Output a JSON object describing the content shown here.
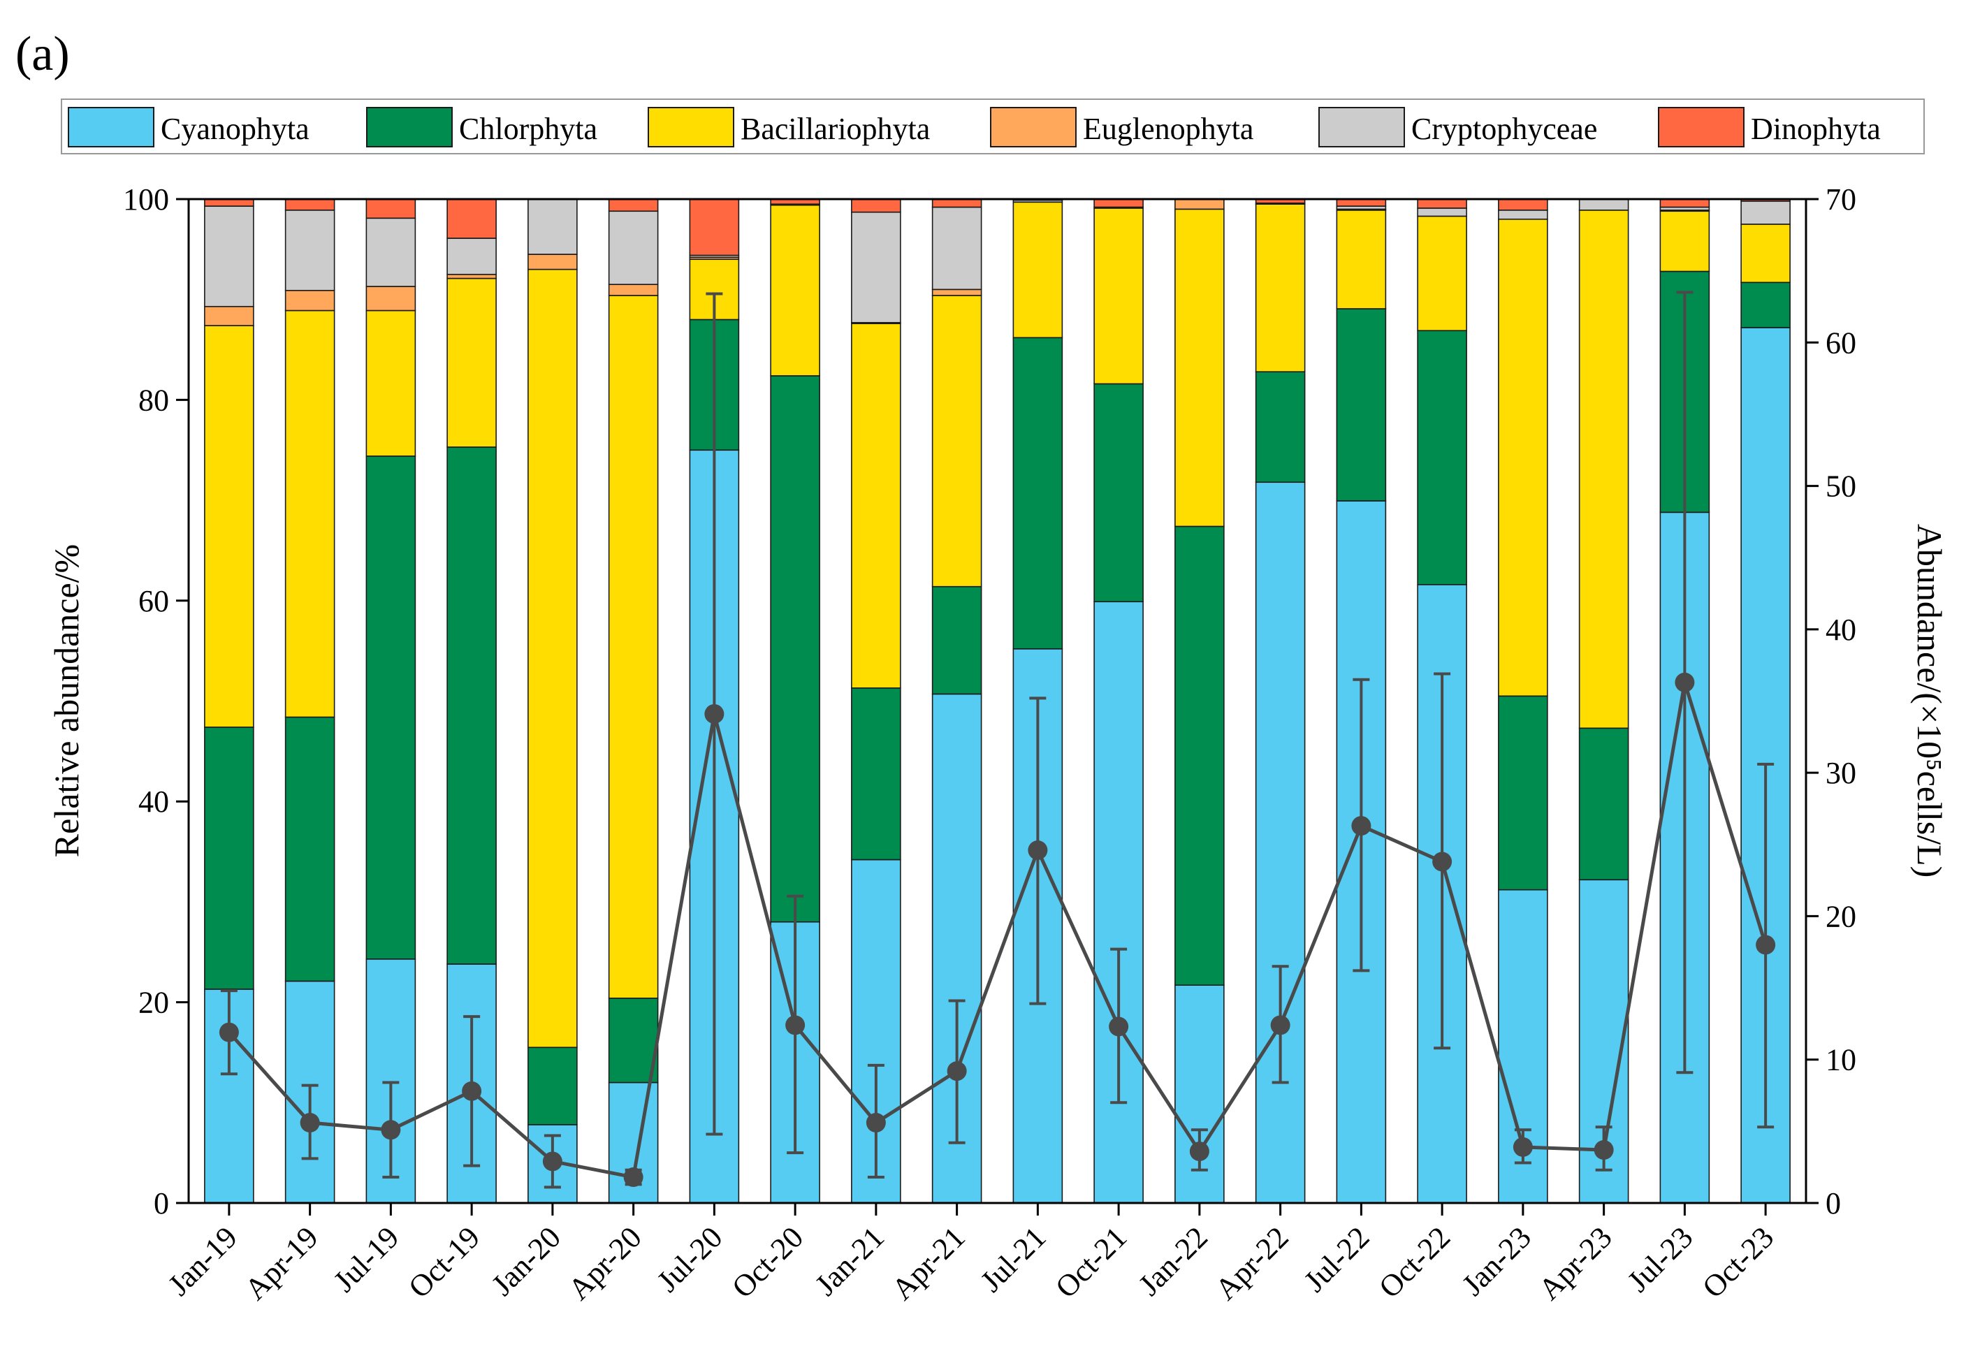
{
  "panel_label": "(a)",
  "chart_data": {
    "type": "bar",
    "stacked": true,
    "title": "",
    "ylabel": "Relative abundance/%",
    "ylabel2": "Abundance/(×10⁵cells/L)",
    "ylim": [
      0,
      100
    ],
    "ylim2": [
      0,
      70
    ],
    "yticks": [
      "0",
      "20",
      "40",
      "60",
      "80",
      "100"
    ],
    "yticks2": [
      "0",
      "10",
      "20",
      "30",
      "40",
      "50",
      "60",
      "70"
    ],
    "legend_position": "top",
    "categories": [
      "Jan-19",
      "Apr-19",
      "Jul-19",
      "Oct-19",
      "Jan-20",
      "Apr-20",
      "Jul-20",
      "Oct-20",
      "Jan-21",
      "Apr-21",
      "Jul-21",
      "Oct-21",
      "Jan-22",
      "Apr-22",
      "Jul-22",
      "Oct-22",
      "Jan-23",
      "Apr-23",
      "Jul-23",
      "Oct-23"
    ],
    "series": [
      {
        "name": "Cyanophyta",
        "color": "#56CCF2",
        "values": [
          21.3,
          22.1,
          24.3,
          23.8,
          7.8,
          12.0,
          75.0,
          28.0,
          34.2,
          50.7,
          55.2,
          59.9,
          21.7,
          71.8,
          69.8,
          61.6,
          31.2,
          32.2,
          68.8,
          87.2
        ]
      },
      {
        "name": "Chlorphyta",
        "color": "#008C4E",
        "values": [
          26.1,
          26.3,
          50.1,
          51.5,
          7.7,
          8.4,
          13.0,
          54.4,
          17.1,
          10.7,
          31.0,
          21.7,
          45.7,
          11.0,
          19.1,
          25.3,
          19.3,
          15.1,
          24.0,
          4.5
        ]
      },
      {
        "name": "Bacillariophyta",
        "color": "#FFDD00",
        "values": [
          40.0,
          40.5,
          14.5,
          16.8,
          77.5,
          70.0,
          6.0,
          17.0,
          36.3,
          29.0,
          13.5,
          17.5,
          31.6,
          16.7,
          9.8,
          11.4,
          47.5,
          51.6,
          6.0,
          5.8
        ]
      },
      {
        "name": "Euglenophyta",
        "color": "#FFA85C",
        "values": [
          1.9,
          2.0,
          2.4,
          0.4,
          1.5,
          1.1,
          0.2,
          0.1,
          0.1,
          0.6,
          0.0,
          0.0,
          1.0,
          0.0,
          0.1,
          0.0,
          0.0,
          0.0,
          0.1,
          0.0
        ]
      },
      {
        "name": "Cryptophyceae",
        "color": "#CCCCCC",
        "values": [
          10.0,
          8.0,
          6.8,
          3.6,
          5.5,
          7.3,
          0.2,
          0.0,
          11.0,
          8.2,
          0.2,
          0.1,
          0.0,
          0.1,
          0.3,
          0.8,
          0.9,
          1.1,
          0.3,
          2.3
        ]
      },
      {
        "name": "Dinophyta",
        "color": "#FF6840",
        "values": [
          0.7,
          1.1,
          1.9,
          3.9,
          0.0,
          1.2,
          5.6,
          0.5,
          1.3,
          0.8,
          0.1,
          0.8,
          0.0,
          0.4,
          0.7,
          0.9,
          1.1,
          0.0,
          0.8,
          0.2
        ]
      }
    ],
    "line_series": {
      "name": "Abundance",
      "axis": "right",
      "color": "#4a4a4a",
      "values": [
        11.9,
        5.6,
        5.1,
        7.8,
        2.9,
        1.8,
        34.1,
        12.4,
        5.6,
        9.2,
        24.6,
        12.3,
        3.6,
        12.4,
        26.3,
        23.8,
        3.9,
        3.7,
        36.3,
        18.0
      ],
      "err_low": [
        9.0,
        3.1,
        1.8,
        2.6,
        1.1,
        1.3,
        4.8,
        3.5,
        1.8,
        4.2,
        13.9,
        7.0,
        2.3,
        8.4,
        16.2,
        10.8,
        2.8,
        2.3,
        9.1,
        5.3
      ],
      "err_high": [
        14.8,
        8.2,
        8.4,
        13.0,
        4.7,
        2.3,
        63.4,
        21.4,
        9.6,
        14.1,
        35.2,
        17.7,
        5.1,
        16.5,
        36.5,
        36.9,
        5.1,
        5.3,
        63.5,
        30.6
      ]
    }
  }
}
